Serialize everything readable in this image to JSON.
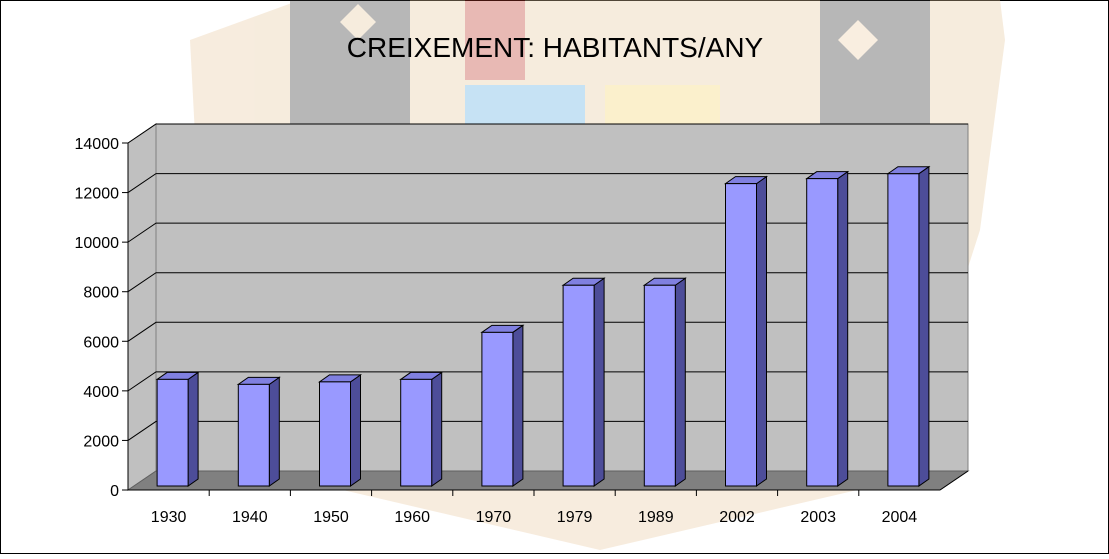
{
  "chart_data": {
    "type": "bar3d",
    "title": "CREIXEMENT: HABITANTS/ANY",
    "categories": [
      "1930",
      "1940",
      "1950",
      "1960",
      "1970",
      "1979",
      "1989",
      "2002",
      "2003",
      "2004"
    ],
    "values": [
      4300,
      4100,
      4200,
      4300,
      6200,
      8100,
      8100,
      12200,
      12400,
      12600
    ],
    "color": "#9999ff",
    "ylim": [
      0,
      14000
    ],
    "yticks": [
      0,
      2000,
      4000,
      6000,
      8000,
      10000,
      12000,
      14000
    ],
    "grid": true
  }
}
